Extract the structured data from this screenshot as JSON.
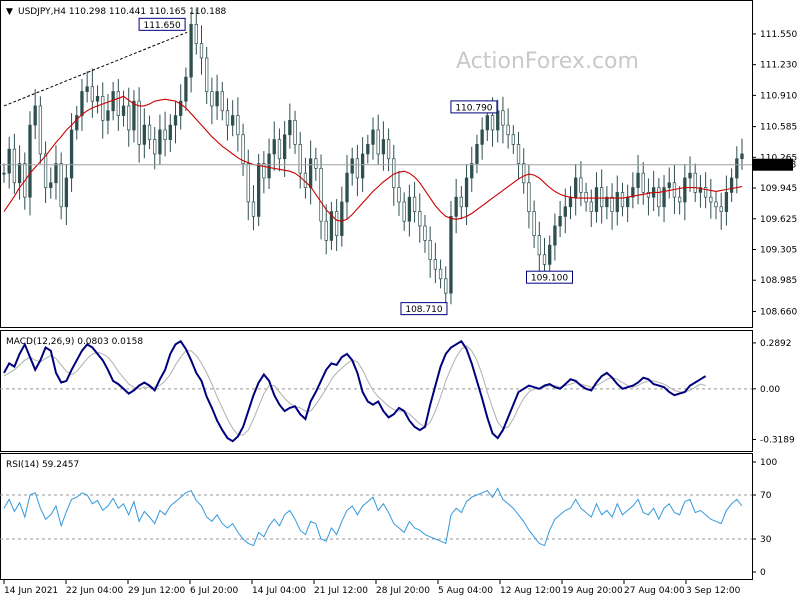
{
  "chart_data": [
    {
      "type": "candlestick",
      "header": "USDJPY,H4  110.298 110.441 110.165 110.188",
      "watermark": "ActionForex.com",
      "ylim": [
        108.55,
        111.82
      ],
      "yticks": [
        "111.550",
        "111.230",
        "110.910",
        "110.585",
        "110.265",
        "109.945",
        "109.625",
        "109.305",
        "108.985",
        "108.660"
      ],
      "current_price": "110.188",
      "callouts": [
        {
          "text": "111.650",
          "value": 111.65
        },
        {
          "text": "110.790",
          "value": 110.79
        },
        {
          "text": "109.100",
          "value": 109.1
        },
        {
          "text": "108.710",
          "value": 108.71
        }
      ],
      "series": [
        {
          "role": "price",
          "color": "#2f4f4f",
          "values": [
            110.1,
            110.35,
            110.0,
            110.2,
            109.85,
            110.6,
            110.8,
            110.3,
            109.95,
            110.0,
            110.2,
            109.75,
            110.05,
            110.55,
            110.7,
            110.95,
            111.0,
            110.85,
            110.9,
            110.65,
            110.75,
            110.95,
            110.7,
            110.8,
            110.55,
            110.85,
            110.4,
            110.6,
            110.45,
            110.3,
            110.55,
            110.45,
            110.6,
            110.7,
            110.85,
            111.1,
            111.65,
            111.45,
            111.3,
            110.95,
            110.8,
            110.95,
            110.75,
            110.6,
            110.7,
            110.5,
            110.2,
            109.8,
            109.65,
            110.2,
            110.05,
            110.3,
            110.45,
            110.25,
            110.5,
            110.65,
            110.4,
            110.1,
            109.95,
            110.25,
            110.15,
            109.6,
            109.4,
            109.7,
            109.45,
            109.8,
            110.1,
            110.25,
            110.05,
            110.3,
            110.4,
            110.55,
            110.3,
            110.45,
            110.25,
            109.95,
            109.8,
            109.6,
            109.85,
            109.7,
            109.55,
            109.4,
            109.2,
            109.1,
            109.0,
            108.85,
            109.65,
            109.85,
            109.75,
            110.05,
            110.2,
            110.4,
            110.55,
            110.7,
            110.55,
            110.75,
            110.6,
            110.5,
            110.4,
            110.2,
            110.0,
            109.7,
            109.45,
            109.25,
            109.15,
            109.35,
            109.55,
            109.65,
            109.75,
            109.85,
            110.05,
            109.9,
            109.8,
            109.7,
            109.95,
            109.75,
            109.85,
            109.7,
            109.9,
            109.75,
            109.85,
            109.95,
            110.1,
            109.9,
            109.85,
            109.95,
            109.75,
            109.95,
            110.0,
            109.85,
            109.8,
            110.05,
            110.1,
            109.9,
            109.95,
            109.85,
            109.8,
            109.75,
            109.7,
            109.9,
            110.05,
            110.25,
            110.3
          ]
        },
        {
          "role": "moving-average",
          "color": "#cc0000",
          "values": [
            109.7,
            109.78,
            109.86,
            109.95,
            110.02,
            110.1,
            110.16,
            110.22,
            110.28,
            110.35,
            110.42,
            110.48,
            110.55,
            110.6,
            110.66,
            110.71,
            110.75,
            110.78,
            110.8,
            110.82,
            110.84,
            110.86,
            110.88,
            110.9,
            110.86,
            110.82,
            110.8,
            110.8,
            110.82,
            110.85,
            110.86,
            110.87,
            110.86,
            110.85,
            110.82,
            110.78,
            110.72,
            110.66,
            110.6,
            110.54,
            110.48,
            110.43,
            110.38,
            110.34,
            110.3,
            110.26,
            110.23,
            110.21,
            110.19,
            110.18,
            110.17,
            110.16,
            110.15,
            110.14,
            110.13,
            110.12,
            110.1,
            110.06,
            110.01,
            109.96,
            109.88,
            109.8,
            109.72,
            109.66,
            109.61,
            109.6,
            109.62,
            109.67,
            109.73,
            109.79,
            109.85,
            109.91,
            109.96,
            110.01,
            110.05,
            110.09,
            110.11,
            110.12,
            110.1,
            110.06,
            110.0,
            109.92,
            109.84,
            109.76,
            109.7,
            109.65,
            109.63,
            109.62,
            109.63,
            109.65,
            109.68,
            109.72,
            109.76,
            109.8,
            109.84,
            109.88,
            109.92,
            109.96,
            110.0,
            110.04,
            110.07,
            110.09,
            110.08,
            110.05,
            110.0,
            109.95,
            109.91,
            109.88,
            109.86,
            109.85,
            109.84,
            109.84,
            109.84,
            109.84,
            109.84,
            109.84,
            109.84,
            109.84,
            109.84,
            109.84,
            109.85,
            109.86,
            109.87,
            109.88,
            109.89,
            109.9,
            109.9,
            109.91,
            109.92,
            109.93,
            109.94,
            109.95,
            109.95,
            109.95,
            109.94,
            109.93,
            109.92,
            109.91,
            109.92,
            109.93,
            109.94,
            109.95,
            109.96
          ]
        }
      ],
      "x_tick_labels": [
        "14 Jun 2021",
        "22 Jun 04:00",
        "29 Jun 12:00",
        "6 Jul 20:00",
        "14 Jul 04:00",
        "21 Jul 12:00",
        "28 Jul 20:00",
        "5 Aug 04:00",
        "12 Aug 12:00",
        "19 Aug 20:00",
        "27 Aug 04:00",
        "3 Sep 12:00"
      ]
    },
    {
      "type": "line",
      "header": "MACD(12,26,9) 0.0803 0.0158",
      "ylim": [
        -0.36,
        0.32
      ],
      "yticks": [
        "0.2892",
        "0.00",
        "-0.3189"
      ],
      "series": [
        {
          "role": "macd",
          "color": "#00007f",
          "values": [
            0.1,
            0.16,
            0.14,
            0.22,
            0.28,
            0.2,
            0.12,
            0.18,
            0.26,
            0.24,
            0.1,
            0.04,
            0.05,
            0.12,
            0.18,
            0.24,
            0.28,
            0.26,
            0.22,
            0.18,
            0.12,
            0.05,
            0.03,
            0.0,
            -0.03,
            -0.01,
            0.02,
            0.04,
            0.02,
            -0.01,
            0.06,
            0.12,
            0.22,
            0.28,
            0.3,
            0.25,
            0.18,
            0.1,
            0.05,
            -0.05,
            -0.12,
            -0.2,
            -0.26,
            -0.31,
            -0.33,
            -0.3,
            -0.24,
            -0.14,
            -0.04,
            0.04,
            0.09,
            0.05,
            -0.04,
            -0.1,
            -0.14,
            -0.12,
            -0.11,
            -0.16,
            -0.19,
            -0.08,
            -0.02,
            0.05,
            0.12,
            0.16,
            0.15,
            0.2,
            0.22,
            0.18,
            0.1,
            -0.02,
            -0.08,
            -0.1,
            -0.08,
            -0.14,
            -0.18,
            -0.16,
            -0.12,
            -0.14,
            -0.2,
            -0.24,
            -0.26,
            -0.24,
            -0.1,
            0.02,
            0.14,
            0.22,
            0.26,
            0.28,
            0.3,
            0.25,
            0.16,
            0.05,
            -0.06,
            -0.18,
            -0.28,
            -0.31,
            -0.26,
            -0.18,
            -0.1,
            -0.02,
            0.0,
            0.02,
            0.01,
            0.0,
            0.02,
            0.03,
            0.01,
            0.0,
            0.03,
            0.06,
            0.05,
            0.02,
            0.0,
            -0.01,
            0.04,
            0.08,
            0.1,
            0.07,
            0.03,
            0.0,
            0.01,
            0.02,
            0.04,
            0.07,
            0.06,
            0.03,
            0.02,
            0.01,
            -0.02,
            -0.04,
            -0.03,
            -0.02,
            0.02,
            0.04,
            0.06,
            0.08
          ]
        },
        {
          "role": "signal",
          "color": "#b0b0b0",
          "values": [
            0.08,
            0.1,
            0.12,
            0.15,
            0.18,
            0.2,
            0.18,
            0.17,
            0.19,
            0.21,
            0.19,
            0.15,
            0.11,
            0.09,
            0.11,
            0.15,
            0.19,
            0.22,
            0.23,
            0.22,
            0.2,
            0.16,
            0.11,
            0.07,
            0.03,
            0.01,
            0.0,
            0.01,
            0.01,
            0.01,
            0.02,
            0.05,
            0.09,
            0.15,
            0.2,
            0.24,
            0.24,
            0.21,
            0.16,
            0.1,
            0.03,
            -0.05,
            -0.12,
            -0.19,
            -0.25,
            -0.29,
            -0.29,
            -0.26,
            -0.19,
            -0.11,
            -0.03,
            0.02,
            0.02,
            -0.02,
            -0.06,
            -0.09,
            -0.11,
            -0.12,
            -0.14,
            -0.14,
            -0.1,
            -0.05,
            0.0,
            0.06,
            0.1,
            0.13,
            0.16,
            0.18,
            0.17,
            0.12,
            0.05,
            -0.01,
            -0.05,
            -0.08,
            -0.11,
            -0.13,
            -0.14,
            -0.14,
            -0.16,
            -0.19,
            -0.22,
            -0.24,
            -0.21,
            -0.14,
            -0.05,
            0.05,
            0.13,
            0.2,
            0.25,
            0.27,
            0.24,
            0.18,
            0.09,
            -0.02,
            -0.12,
            -0.21,
            -0.25,
            -0.24,
            -0.19,
            -0.12,
            -0.06,
            -0.02,
            0.0,
            0.0,
            0.01,
            0.02,
            0.02,
            0.01,
            0.02,
            0.03,
            0.04,
            0.03,
            0.02,
            0.01,
            0.02,
            0.04,
            0.06,
            0.07,
            0.06,
            0.04,
            0.02,
            0.01,
            0.02,
            0.04,
            0.05,
            0.05,
            0.04,
            0.03,
            0.01,
            -0.01,
            -0.02,
            -0.02,
            -0.01,
            0.01,
            0.03,
            0.02
          ]
        }
      ]
    },
    {
      "type": "line",
      "header": "RSI(14) 59.2457",
      "ylim": [
        0,
        100
      ],
      "yticks": [
        "100",
        "70",
        "30",
        "0"
      ],
      "levels": [
        70,
        30
      ],
      "series": [
        {
          "role": "rsi",
          "color": "#3399dd",
          "values": [
            58,
            66,
            55,
            63,
            50,
            70,
            72,
            58,
            48,
            52,
            60,
            42,
            55,
            66,
            68,
            72,
            70,
            62,
            65,
            56,
            60,
            67,
            58,
            62,
            52,
            64,
            46,
            55,
            50,
            44,
            56,
            52,
            60,
            64,
            68,
            72,
            74,
            65,
            60,
            50,
            46,
            52,
            44,
            40,
            44,
            36,
            30,
            26,
            24,
            36,
            32,
            42,
            48,
            42,
            52,
            56,
            48,
            38,
            34,
            46,
            44,
            30,
            28,
            40,
            34,
            46,
            56,
            60,
            52,
            60,
            64,
            68,
            56,
            62,
            54,
            44,
            40,
            36,
            46,
            40,
            38,
            34,
            32,
            30,
            28,
            26,
            52,
            58,
            54,
            64,
            68,
            70,
            72,
            74,
            68,
            76,
            66,
            62,
            58,
            52,
            46,
            38,
            32,
            26,
            24,
            38,
            48,
            52,
            56,
            58,
            66,
            58,
            54,
            50,
            62,
            52,
            56,
            50,
            62,
            52,
            56,
            60,
            66,
            54,
            52,
            58,
            48,
            58,
            62,
            54,
            52,
            64,
            66,
            54,
            56,
            52,
            48,
            46,
            44,
            56,
            62,
            66,
            60
          ]
        }
      ]
    }
  ]
}
